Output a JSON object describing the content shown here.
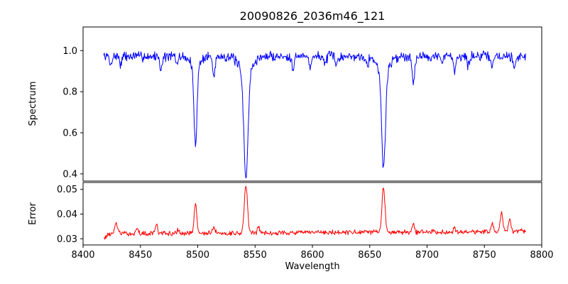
{
  "figure": {
    "title": "20090826_2036m46_121",
    "xlabel": "Wavelength",
    "background": "#ffffff"
  },
  "chart_data": [
    {
      "type": "line",
      "name": "spectrum",
      "ylabel": "Spectrum",
      "color": "#0000ff",
      "xlim": [
        8400,
        8800
      ],
      "ylim": [
        0.365,
        1.115
      ],
      "yticks": {
        "values": [
          0.4,
          0.6,
          0.8,
          1.0
        ],
        "labels": [
          "0.4",
          "0.6",
          "0.8",
          "1.0"
        ]
      },
      "x_start": 8418,
      "x_end": 8786,
      "x_step": 0.5,
      "baseline": 0.972,
      "baseline_end": 0.972,
      "noise_amplitude": 0.03,
      "noise_seed": 7,
      "feature_sign": -1,
      "features": [
        {
          "center": 8424,
          "amplitude": 0.045,
          "sigma": 0.9
        },
        {
          "center": 8433,
          "amplitude": 0.04,
          "sigma": 0.9
        },
        {
          "center": 8468,
          "amplitude": 0.065,
          "sigma": 1.0
        },
        {
          "center": 8482,
          "amplitude": 0.04,
          "sigma": 0.9
        },
        {
          "center": 8498,
          "amplitude": 0.38,
          "sigma": 1.3,
          "label": "Ca II 8498 absorption, depth to ~0.54"
        },
        {
          "center": 8498,
          "amplitude": 0.05,
          "sigma": 4.0
        },
        {
          "center": 8514,
          "amplitude": 0.1,
          "sigma": 1.0
        },
        {
          "center": 8542,
          "amplitude": 0.5,
          "sigma": 1.8,
          "label": "Ca II 8542 absorption, depth to ~0.38"
        },
        {
          "center": 8542,
          "amplitude": 0.085,
          "sigma": 5.5
        },
        {
          "center": 8583,
          "amplitude": 0.055,
          "sigma": 0.9
        },
        {
          "center": 8598,
          "amplitude": 0.05,
          "sigma": 0.9
        },
        {
          "center": 8611,
          "amplitude": 0.045,
          "sigma": 0.9
        },
        {
          "center": 8621,
          "amplitude": 0.05,
          "sigma": 0.9
        },
        {
          "center": 8648,
          "amplitude": 0.04,
          "sigma": 0.9
        },
        {
          "center": 8662,
          "amplitude": 0.47,
          "sigma": 1.6,
          "label": "Ca II 8662 absorption, depth to ~0.43"
        },
        {
          "center": 8662,
          "amplitude": 0.08,
          "sigma": 5.0
        },
        {
          "center": 8688,
          "amplitude": 0.125,
          "sigma": 1.1
        },
        {
          "center": 8713,
          "amplitude": 0.04,
          "sigma": 0.9
        },
        {
          "center": 8724,
          "amplitude": 0.07,
          "sigma": 1.0
        },
        {
          "center": 8736,
          "amplitude": 0.045,
          "sigma": 0.9
        },
        {
          "center": 8757,
          "amplitude": 0.05,
          "sigma": 0.9
        },
        {
          "center": 8776,
          "amplitude": 0.06,
          "sigma": 0.9
        }
      ]
    },
    {
      "type": "line",
      "name": "error",
      "ylabel": "Error",
      "color": "#ff0000",
      "xlim": [
        8400,
        8800
      ],
      "ylim": [
        0.0275,
        0.0528
      ],
      "yticks": {
        "values": [
          0.03,
          0.04,
          0.05
        ],
        "labels": [
          "0.03",
          "0.04",
          "0.05"
        ]
      },
      "xticks": {
        "values": [
          8400,
          8450,
          8500,
          8550,
          8600,
          8650,
          8700,
          8750,
          8800
        ],
        "labels": [
          "8400",
          "8450",
          "8500",
          "8550",
          "8600",
          "8650",
          "8700",
          "8750",
          "8800"
        ]
      },
      "x_start": 8418,
      "x_end": 8786,
      "x_step": 0.5,
      "baseline": 0.032,
      "baseline_end": 0.033,
      "noise_amplitude": 0.0012,
      "noise_seed": 13,
      "feature_sign": 1,
      "features": [
        {
          "center": 8419,
          "amplitude": -0.0015,
          "sigma": 1.5
        },
        {
          "center": 8429,
          "amplitude": 0.0045,
          "sigma": 1.2
        },
        {
          "center": 8447,
          "amplitude": 0.002,
          "sigma": 1.0
        },
        {
          "center": 8464,
          "amplitude": 0.0035,
          "sigma": 1.1
        },
        {
          "center": 8483,
          "amplitude": 0.0015,
          "sigma": 1.0
        },
        {
          "center": 8498,
          "amplitude": 0.0115,
          "sigma": 1.2,
          "label": "error peak ~0.044 at 8498"
        },
        {
          "center": 8514,
          "amplitude": 0.0025,
          "sigma": 1.0
        },
        {
          "center": 8542,
          "amplitude": 0.019,
          "sigma": 1.4,
          "label": "error peak ~0.051 at 8542"
        },
        {
          "center": 8553,
          "amplitude": 0.0025,
          "sigma": 1.0
        },
        {
          "center": 8662,
          "amplitude": 0.0185,
          "sigma": 1.3,
          "label": "error peak ~0.051 at 8662"
        },
        {
          "center": 8688,
          "amplitude": 0.003,
          "sigma": 1.0
        },
        {
          "center": 8724,
          "amplitude": 0.0015,
          "sigma": 1.0
        },
        {
          "center": 8757,
          "amplitude": 0.003,
          "sigma": 1.0
        },
        {
          "center": 8765,
          "amplitude": 0.0075,
          "sigma": 1.2
        },
        {
          "center": 8772,
          "amplitude": 0.0045,
          "sigma": 1.1
        }
      ]
    }
  ]
}
